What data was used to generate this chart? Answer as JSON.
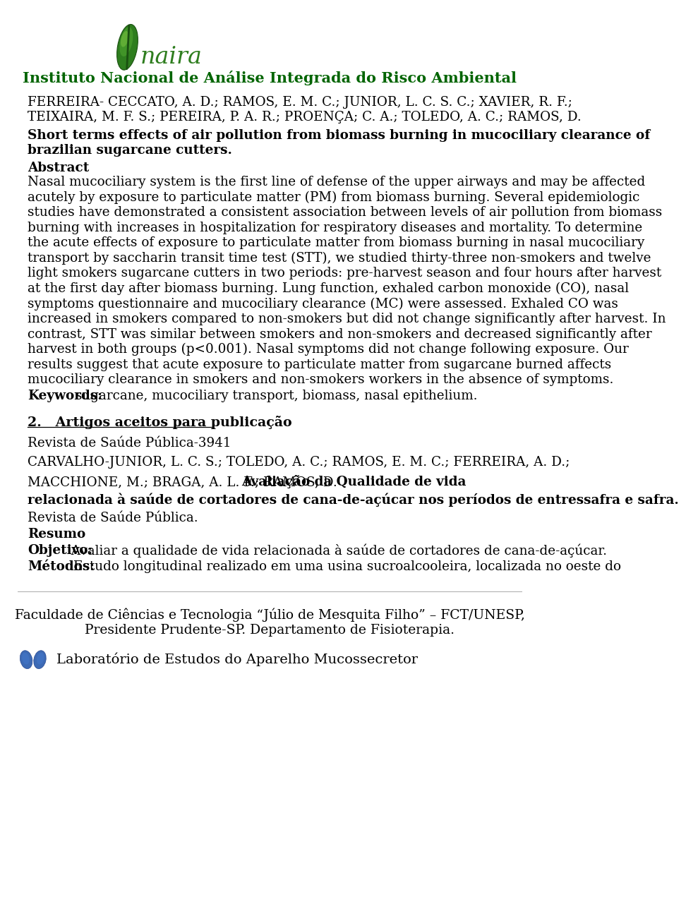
{
  "logo_text": "naira",
  "institute_name": "Instituto Nacional de Análise Integrada do Risco Ambiental",
  "authors_line1": "FERREIRA- CECCATO, A. D.; RAMOS, E. M. C.; JUNIOR, L. C. S. C.; XAVIER, R. F.;",
  "authors_line2": "TEIXAIRA, M. F. S.; PEREIRA, P. A. R.; PROENÇA; C. A.; TOLEDO, A. C.; RAMOS, D.",
  "title_line1": "Short terms effects of air pollution from biomass burning in mucociliary clearance of",
  "title_line2": "brazilian sugarcane cutters.",
  "section_abstract": "Abstract",
  "abstract_lines": [
    "Nasal mucociliary system is the first line of defense of the upper airways and may be affected",
    "acutely by exposure to particulate matter (PM) from biomass burning. Several epidemiologic",
    "studies have demonstrated a consistent association between levels of air pollution from biomass",
    "burning with increases in hospitalization for respiratory diseases and mortality. To determine",
    "the acute effects of exposure to particulate matter from biomass burning in nasal mucociliary",
    "transport by saccharin transit time test (STT), we studied thirty-three non-smokers and twelve",
    "light smokers sugarcane cutters in two periods: pre-harvest season and four hours after harvest",
    "at the first day after biomass burning. Lung function, exhaled carbon monoxide (CO), nasal",
    "symptoms questionnaire and mucociliary clearance (MC) were assessed. Exhaled CO was",
    "increased in smokers compared to non-smokers but did not change significantly after harvest. In",
    "contrast, STT was similar between smokers and non-smokers and decreased significantly after",
    "harvest in both groups (p<0.001). Nasal symptoms did not change following exposure. Our",
    "results suggest that acute exposure to particulate matter from sugarcane burned affects",
    "mucociliary clearance in smokers and non-smokers workers in the absence of symptoms."
  ],
  "keywords_label": "Keywords:",
  "keywords_text": " sugarcane, mucociliary transport, biomass, nasal epithelium.",
  "section2_num": "2.",
  "section2_title": "   Artigos aceitos para publicação",
  "journal1": "Revista de Saúde Pública-3941",
  "authors2_line1": "CARVALHO-JUNIOR, L. C. S.; TOLEDO, A. C.; RAMOS, E. M. C.; FERREIRA, A. D.;",
  "authors2_line2_normal": "MACCHIONE, M.; BRAGA, A. L. F.; RAMOS, D. ",
  "authors2_line2_bold_part1": "Avaliação da Qualidade de vida",
  "authors2_line3_bold": "relacionada à saúde de cortadores de cana-de-açúcar nos períodos de entressafra e safra.",
  "journal2": "Revista de Saúde Pública.",
  "resumo_label": "Resumo",
  "objetivo_label": "Objetivo:",
  "objetivo_text": " Avaliar a qualidade de vida relacionada à saúde de cortadores de cana-de-açúcar.",
  "metodos_label": "Métodos:",
  "metodos_text": " Estudo longitudinal realizado em uma usina sucroalcooleira, localizada no oeste do",
  "affiliation_line1": "Faculdade de Ciências e Tecnologia “Júlio de Mesquita Filho” – FCT/UNESP,",
  "affiliation_line2": "Presidente Prudente-SP. Departamento de Fisioterapia.",
  "lab_text": "Laboratório de Estudos do Aparelho Mucossecretor",
  "green_color": "#228B22",
  "dark_green": "#006400",
  "text_color": "#000000",
  "bg_color": "#ffffff"
}
